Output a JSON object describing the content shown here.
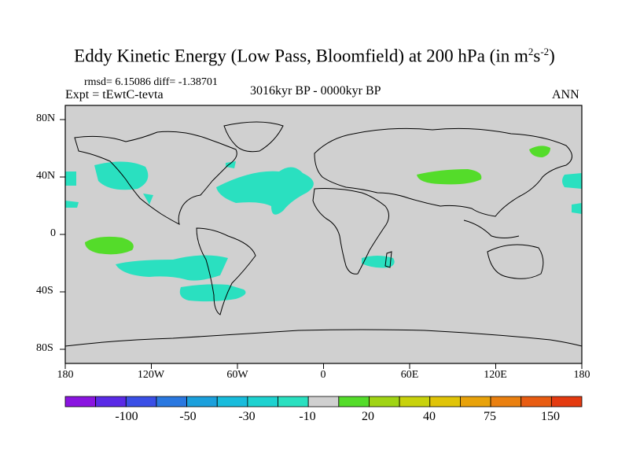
{
  "title": {
    "main": "Eddy Kinetic Energy (Low Pass, Bloomfield) at 200 hPa (in m",
    "sup1": "2",
    "mid": "s",
    "sup2": "-2",
    "end": ")"
  },
  "stats": "rmsd= 6.15086 diff= -1.38701",
  "expt": "Expt = tEwtC-tevta",
  "period": "3016kyr BP - 0000kyr BP",
  "season": "ANN",
  "map": {
    "lat_ticks": [
      "80N",
      "40N",
      "0",
      "40S",
      "80S"
    ],
    "lon_ticks": [
      "180",
      "120W",
      "60W",
      "0",
      "60E",
      "120E",
      "180"
    ],
    "land_color": "#d0d0d0",
    "coast_color": "#000000"
  },
  "colorbar": {
    "colors": [
      "#8a14e0",
      "#5a2ae6",
      "#3a4fe6",
      "#2a78e0",
      "#1ca0dc",
      "#18bcdc",
      "#1ed2d0",
      "#2ae0c0",
      "#d0d0d0",
      "#54dc2a",
      "#a0d414",
      "#c8d20c",
      "#e0c408",
      "#e8a20a",
      "#ea8010",
      "#e85c12",
      "#e43a10"
    ],
    "labels": [
      "-100",
      "-50",
      "-30",
      "-10",
      "20",
      "40",
      "75",
      "150"
    ]
  }
}
